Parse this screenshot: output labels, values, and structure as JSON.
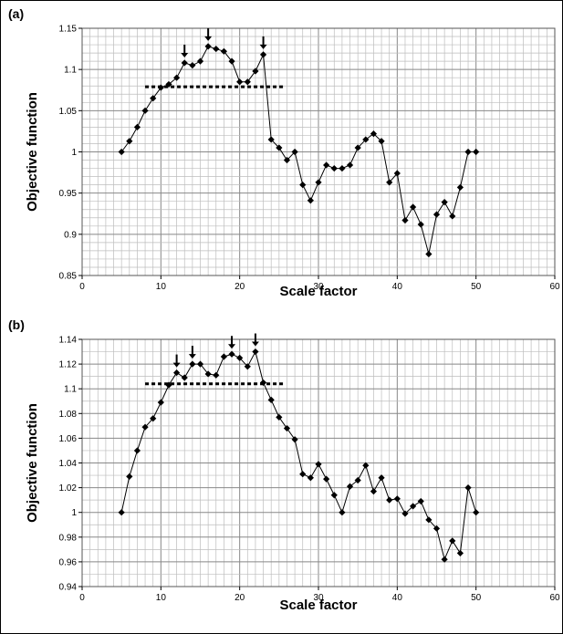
{
  "chart_data": [
    {
      "panel_label": "(a)",
      "type": "line",
      "xlabel": "Scale factor",
      "ylabel": "Objective function",
      "xlim": [
        0,
        60
      ],
      "ylim": [
        0.85,
        1.15
      ],
      "x_ticks": [
        "0",
        "10",
        "20",
        "30",
        "40",
        "50",
        "60"
      ],
      "y_ticks": [
        "0.85",
        "0.9",
        "0.95",
        "1",
        "1.05",
        "1.1",
        "1.15"
      ],
      "x_minor_step": 1,
      "y_minor_step": 0.01,
      "series": [
        {
          "x": [
            5,
            6,
            7,
            8,
            9,
            10,
            11,
            12,
            13,
            14,
            15,
            16,
            17,
            18,
            19,
            20,
            21,
            22,
            23,
            24,
            25,
            26,
            27,
            28,
            29,
            30,
            31,
            32,
            33,
            34,
            35,
            36,
            37,
            38,
            39,
            40,
            41,
            42,
            43,
            44,
            45,
            46,
            47,
            48,
            49,
            50
          ],
          "values": [
            1.0,
            1.013,
            1.03,
            1.05,
            1.065,
            1.078,
            1.082,
            1.09,
            1.108,
            1.105,
            1.11,
            1.128,
            1.125,
            1.122,
            1.11,
            1.085,
            1.085,
            1.098,
            1.118,
            1.015,
            1.005,
            0.99,
            1.0,
            0.96,
            0.941,
            0.963,
            0.984,
            0.98,
            0.98,
            0.984,
            1.005,
            1.015,
            1.022,
            1.013,
            0.963,
            0.974,
            0.917,
            0.933,
            0.912,
            0.876,
            0.924,
            0.939,
            0.922,
            0.957,
            1.0,
            1.0
          ]
        }
      ],
      "threshold": {
        "y": 1.079,
        "x_from": 8,
        "x_to": 25.5
      },
      "arrows_at_x": [
        13,
        16,
        23
      ]
    },
    {
      "panel_label": "(b)",
      "type": "line",
      "xlabel": "Scale factor",
      "ylabel": "Objective function",
      "xlim": [
        0,
        60
      ],
      "ylim": [
        0.94,
        1.14
      ],
      "x_ticks": [
        "0",
        "10",
        "20",
        "30",
        "40",
        "50",
        "60"
      ],
      "y_ticks": [
        "0.94",
        "0.96",
        "0.98",
        "1",
        "1.02",
        "1.04",
        "1.06",
        "1.08",
        "1.1",
        "1.12",
        "1.14"
      ],
      "x_minor_step": 1,
      "y_minor_step": 0.01,
      "series": [
        {
          "x": [
            5,
            6,
            7,
            8,
            9,
            10,
            11,
            12,
            13,
            14,
            15,
            16,
            17,
            18,
            19,
            20,
            21,
            22,
            23,
            24,
            25,
            26,
            27,
            28,
            29,
            30,
            31,
            32,
            33,
            34,
            35,
            36,
            37,
            38,
            39,
            40,
            41,
            42,
            43,
            44,
            45,
            46,
            47,
            48,
            49,
            50
          ],
          "values": [
            1.0,
            1.029,
            1.05,
            1.069,
            1.076,
            1.089,
            1.103,
            1.113,
            1.109,
            1.12,
            1.12,
            1.112,
            1.111,
            1.126,
            1.128,
            1.125,
            1.118,
            1.13,
            1.105,
            1.091,
            1.077,
            1.068,
            1.059,
            1.031,
            1.028,
            1.039,
            1.027,
            1.014,
            1.0,
            1.021,
            1.026,
            1.038,
            1.017,
            1.028,
            1.01,
            1.011,
            0.999,
            1.005,
            1.009,
            0.994,
            0.987,
            0.962,
            0.977,
            0.967,
            1.02,
            1.0
          ]
        }
      ],
      "threshold": {
        "y": 1.104,
        "x_from": 8,
        "x_to": 25.5
      },
      "arrows_at_x": [
        12,
        14,
        19,
        22
      ]
    }
  ]
}
